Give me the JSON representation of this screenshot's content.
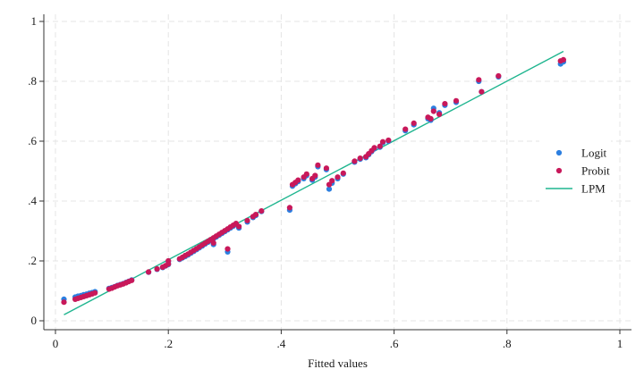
{
  "chart_data": {
    "type": "scatter",
    "xlabel": "Fitted values",
    "ylabel": "",
    "xlim": [
      0,
      1
    ],
    "ylim": [
      0,
      1
    ],
    "xticks": [
      {
        "value": 0,
        "label": "0"
      },
      {
        "value": 0.2,
        "label": ".2"
      },
      {
        "value": 0.4,
        "label": ".4"
      },
      {
        "value": 0.6,
        "label": ".6"
      },
      {
        "value": 0.8,
        "label": ".8"
      },
      {
        "value": 1,
        "label": "1"
      }
    ],
    "yticks": [
      {
        "value": 0,
        "label": "0"
      },
      {
        "value": 0.2,
        "label": ".2"
      },
      {
        "value": 0.4,
        "label": ".4"
      },
      {
        "value": 0.6,
        "label": ".6"
      },
      {
        "value": 0.8,
        "label": ".8"
      },
      {
        "value": 1,
        "label": "1"
      }
    ],
    "grid": true,
    "legend_position": "right",
    "series": [
      {
        "name": "Logit",
        "kind": "scatter",
        "color": "#2c7fe0",
        "points": [
          [
            0.015,
            0.072
          ],
          [
            0.035,
            0.079
          ],
          [
            0.04,
            0.082
          ],
          [
            0.045,
            0.084
          ],
          [
            0.05,
            0.087
          ],
          [
            0.055,
            0.089
          ],
          [
            0.06,
            0.092
          ],
          [
            0.065,
            0.094
          ],
          [
            0.07,
            0.097
          ],
          [
            0.095,
            0.108
          ],
          [
            0.1,
            0.111
          ],
          [
            0.105,
            0.114
          ],
          [
            0.11,
            0.118
          ],
          [
            0.115,
            0.121
          ],
          [
            0.12,
            0.124
          ],
          [
            0.125,
            0.128
          ],
          [
            0.13,
            0.132
          ],
          [
            0.135,
            0.136
          ],
          [
            0.165,
            0.162
          ],
          [
            0.18,
            0.172
          ],
          [
            0.19,
            0.178
          ],
          [
            0.195,
            0.183
          ],
          [
            0.2,
            0.188
          ],
          [
            0.2,
            0.198
          ],
          [
            0.22,
            0.205
          ],
          [
            0.225,
            0.21
          ],
          [
            0.23,
            0.215
          ],
          [
            0.235,
            0.22
          ],
          [
            0.24,
            0.226
          ],
          [
            0.245,
            0.232
          ],
          [
            0.25,
            0.238
          ],
          [
            0.255,
            0.244
          ],
          [
            0.26,
            0.25
          ],
          [
            0.265,
            0.256
          ],
          [
            0.27,
            0.262
          ],
          [
            0.275,
            0.268
          ],
          [
            0.28,
            0.274
          ],
          [
            0.285,
            0.28
          ],
          [
            0.29,
            0.286
          ],
          [
            0.295,
            0.292
          ],
          [
            0.3,
            0.298
          ],
          [
            0.305,
            0.304
          ],
          [
            0.31,
            0.31
          ],
          [
            0.315,
            0.316
          ],
          [
            0.32,
            0.322
          ],
          [
            0.28,
            0.255
          ],
          [
            0.305,
            0.23
          ],
          [
            0.325,
            0.31
          ],
          [
            0.34,
            0.33
          ],
          [
            0.35,
            0.345
          ],
          [
            0.355,
            0.352
          ],
          [
            0.365,
            0.365
          ],
          [
            0.415,
            0.37
          ],
          [
            0.42,
            0.45
          ],
          [
            0.425,
            0.458
          ],
          [
            0.43,
            0.465
          ],
          [
            0.44,
            0.475
          ],
          [
            0.445,
            0.485
          ],
          [
            0.455,
            0.47
          ],
          [
            0.46,
            0.48
          ],
          [
            0.465,
            0.515
          ],
          [
            0.48,
            0.505
          ],
          [
            0.485,
            0.44
          ],
          [
            0.49,
            0.46
          ],
          [
            0.5,
            0.475
          ],
          [
            0.51,
            0.49
          ],
          [
            0.53,
            0.53
          ],
          [
            0.54,
            0.54
          ],
          [
            0.55,
            0.545
          ],
          [
            0.555,
            0.555
          ],
          [
            0.56,
            0.565
          ],
          [
            0.565,
            0.575
          ],
          [
            0.575,
            0.58
          ],
          [
            0.58,
            0.595
          ],
          [
            0.59,
            0.6
          ],
          [
            0.62,
            0.635
          ],
          [
            0.635,
            0.655
          ],
          [
            0.66,
            0.675
          ],
          [
            0.665,
            0.67
          ],
          [
            0.67,
            0.71
          ],
          [
            0.68,
            0.695
          ],
          [
            0.69,
            0.72
          ],
          [
            0.71,
            0.73
          ],
          [
            0.75,
            0.8
          ],
          [
            0.755,
            0.765
          ],
          [
            0.785,
            0.815
          ],
          [
            0.895,
            0.858
          ],
          [
            0.9,
            0.865
          ]
        ]
      },
      {
        "name": "Probit",
        "kind": "scatter",
        "color": "#c8185a",
        "points": [
          [
            0.015,
            0.062
          ],
          [
            0.035,
            0.072
          ],
          [
            0.04,
            0.075
          ],
          [
            0.045,
            0.078
          ],
          [
            0.05,
            0.081
          ],
          [
            0.055,
            0.084
          ],
          [
            0.06,
            0.087
          ],
          [
            0.065,
            0.09
          ],
          [
            0.07,
            0.093
          ],
          [
            0.095,
            0.106
          ],
          [
            0.1,
            0.109
          ],
          [
            0.105,
            0.113
          ],
          [
            0.11,
            0.117
          ],
          [
            0.115,
            0.12
          ],
          [
            0.12,
            0.123
          ],
          [
            0.125,
            0.127
          ],
          [
            0.13,
            0.131
          ],
          [
            0.135,
            0.135
          ],
          [
            0.165,
            0.163
          ],
          [
            0.18,
            0.173
          ],
          [
            0.19,
            0.179
          ],
          [
            0.195,
            0.184
          ],
          [
            0.2,
            0.19
          ],
          [
            0.2,
            0.2
          ],
          [
            0.22,
            0.207
          ],
          [
            0.225,
            0.212
          ],
          [
            0.23,
            0.218
          ],
          [
            0.235,
            0.223
          ],
          [
            0.24,
            0.229
          ],
          [
            0.245,
            0.235
          ],
          [
            0.25,
            0.241
          ],
          [
            0.255,
            0.247
          ],
          [
            0.26,
            0.253
          ],
          [
            0.265,
            0.259
          ],
          [
            0.27,
            0.265
          ],
          [
            0.275,
            0.271
          ],
          [
            0.28,
            0.277
          ],
          [
            0.285,
            0.283
          ],
          [
            0.29,
            0.289
          ],
          [
            0.295,
            0.295
          ],
          [
            0.3,
            0.301
          ],
          [
            0.305,
            0.307
          ],
          [
            0.31,
            0.313
          ],
          [
            0.315,
            0.319
          ],
          [
            0.32,
            0.325
          ],
          [
            0.28,
            0.26
          ],
          [
            0.305,
            0.24
          ],
          [
            0.325,
            0.315
          ],
          [
            0.34,
            0.335
          ],
          [
            0.35,
            0.348
          ],
          [
            0.355,
            0.355
          ],
          [
            0.365,
            0.367
          ],
          [
            0.415,
            0.378
          ],
          [
            0.42,
            0.455
          ],
          [
            0.425,
            0.462
          ],
          [
            0.43,
            0.47
          ],
          [
            0.44,
            0.48
          ],
          [
            0.445,
            0.49
          ],
          [
            0.455,
            0.475
          ],
          [
            0.46,
            0.485
          ],
          [
            0.465,
            0.52
          ],
          [
            0.48,
            0.51
          ],
          [
            0.485,
            0.455
          ],
          [
            0.49,
            0.468
          ],
          [
            0.5,
            0.48
          ],
          [
            0.51,
            0.493
          ],
          [
            0.53,
            0.533
          ],
          [
            0.54,
            0.543
          ],
          [
            0.55,
            0.548
          ],
          [
            0.555,
            0.558
          ],
          [
            0.56,
            0.568
          ],
          [
            0.565,
            0.578
          ],
          [
            0.575,
            0.583
          ],
          [
            0.58,
            0.598
          ],
          [
            0.59,
            0.603
          ],
          [
            0.62,
            0.64
          ],
          [
            0.635,
            0.66
          ],
          [
            0.66,
            0.68
          ],
          [
            0.665,
            0.675
          ],
          [
            0.67,
            0.7
          ],
          [
            0.68,
            0.69
          ],
          [
            0.69,
            0.725
          ],
          [
            0.71,
            0.735
          ],
          [
            0.75,
            0.805
          ],
          [
            0.755,
            0.765
          ],
          [
            0.785,
            0.818
          ],
          [
            0.895,
            0.868
          ],
          [
            0.9,
            0.872
          ]
        ]
      },
      {
        "name": "LPM",
        "kind": "line",
        "color": "#1fb58f",
        "points": [
          [
            0.015,
            0.02
          ],
          [
            0.9,
            0.9
          ]
        ]
      }
    ]
  }
}
